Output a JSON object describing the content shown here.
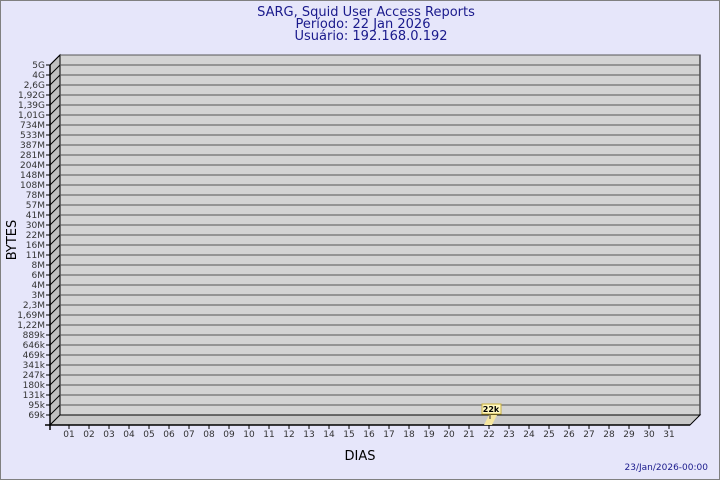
{
  "header": {
    "title": "SARG, Squid User Access Reports",
    "period": "Período: 22 Jan 2026",
    "user": "Usuário: 192.168.0.192"
  },
  "footer": {
    "timestamp": "23/Jan/2026-00:00"
  },
  "colors": {
    "background": "#e6e6fa",
    "plot": "#d3d3d3",
    "bar": "#f5e6a0",
    "title": "#1a1a8c"
  },
  "chart_data": {
    "type": "bar",
    "xlabel": "DIAS",
    "ylabel": "BYTES",
    "y_scale": "log",
    "grid": true,
    "y_ticks": [
      "5G",
      "4G",
      "2,6G",
      "1,92G",
      "1,39G",
      "1,01G",
      "734M",
      "533M",
      "387M",
      "281M",
      "204M",
      "148M",
      "108M",
      "78M",
      "57M",
      "41M",
      "30M",
      "22M",
      "16M",
      "11M",
      "8M",
      "6M",
      "4M",
      "3M",
      "2,3M",
      "1,69M",
      "1,22M",
      "889k",
      "646k",
      "469k",
      "341k",
      "247k",
      "180k",
      "131k",
      "95k",
      "69k"
    ],
    "categories": [
      "01",
      "02",
      "03",
      "04",
      "05",
      "06",
      "07",
      "08",
      "09",
      "10",
      "11",
      "12",
      "13",
      "14",
      "15",
      "16",
      "17",
      "18",
      "19",
      "20",
      "21",
      "22",
      "23",
      "24",
      "25",
      "26",
      "27",
      "28",
      "29",
      "30",
      "31"
    ],
    "bars": [
      {
        "day": "22",
        "value": 22000,
        "label": "22k"
      }
    ]
  }
}
